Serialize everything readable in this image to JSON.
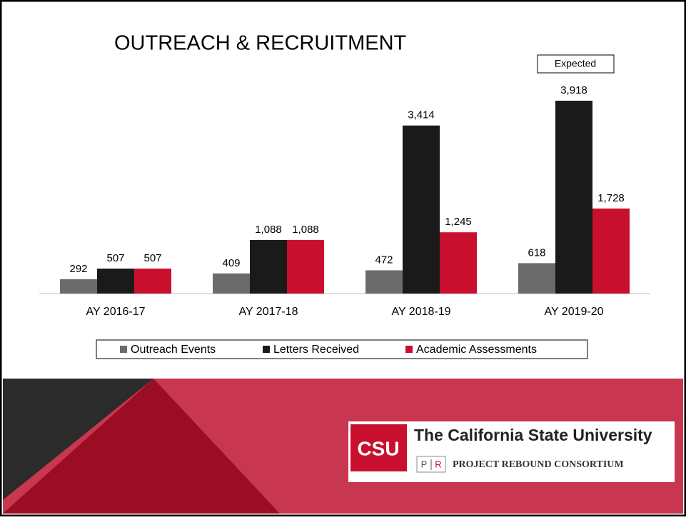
{
  "chart_data": {
    "type": "bar",
    "title": "OUTREACH  &  RECRUITMENT",
    "annotations": [
      "Expected"
    ],
    "categories": [
      "AY 2016-17",
      "AY 2017-18",
      "AY 2018-19",
      "AY 2019-20"
    ],
    "series": [
      {
        "name": "Outreach Events",
        "color": "#6b6b6b",
        "values": [
          292,
          409,
          472,
          618
        ],
        "value_labels": [
          "292",
          "409",
          "472",
          "618"
        ]
      },
      {
        "name": "Letters Received",
        "color": "#1a1a1a",
        "values": [
          507,
          1088,
          3414,
          3918
        ],
        "value_labels": [
          "507",
          "1,088",
          "3,414",
          "3,918"
        ]
      },
      {
        "name": "Academic Assessments",
        "color": "#c8102e",
        "values": [
          507,
          1088,
          1245,
          1728
        ],
        "value_labels": [
          "507",
          "1,088",
          "1,245",
          "1,728"
        ]
      }
    ],
    "legend": "bottom"
  },
  "logo": {
    "mark": "CSU",
    "name": "The California State University",
    "badge_left": "P",
    "badge_right": "R",
    "consortium": "PROJECT REBOUND CONSORTIUM"
  }
}
